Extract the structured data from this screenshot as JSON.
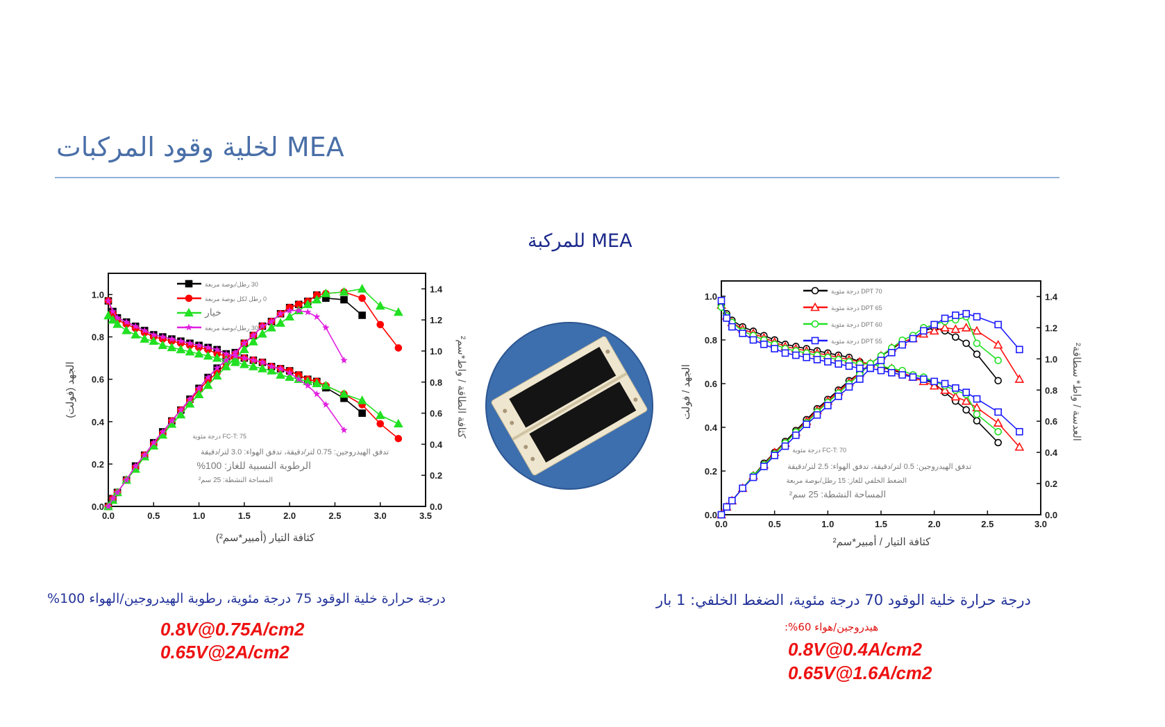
{
  "header": {
    "title": "MEA لخلية وقود المركبات",
    "subtitle": "MEA للمركبة"
  },
  "image": {
    "icon": "mea-fuel-cell-photo",
    "disc_color": "#3d6fae"
  },
  "captions": {
    "left": "درجة حرارة خلية الوقود 75 درجة مئوية، رطوبة الهيدروجين/الهواء 100%",
    "left_results": [
      "0.8V@0.75A/cm2",
      "0.65V@2A/cm2"
    ],
    "right": "درجة حرارة خلية الوقود 70 درجة مئوية، الضغط الخلفي: 1 بار",
    "right_sub": "هيدروجين/هواء 60%:",
    "right_results": [
      "0.8V@0.4A/cm2",
      "0.65V@1.6A/cm2"
    ],
    "result_color": "#ee1111"
  },
  "chart_data": [
    {
      "type": "line",
      "xlabel": "كثافة التيار (أمبير*سم²)",
      "ylabel": "الجهد (فولت)",
      "y2label": "كثافة الطاقة / واط*سم²",
      "xlim": [
        0,
        3.5
      ],
      "ylim": [
        0,
        1.1
      ],
      "y2lim": [
        0,
        1.5
      ],
      "xticks": [
        "0.0",
        "0.5",
        "1.0",
        "1.5",
        "2.0",
        "2.5",
        "3.0",
        "3.5"
      ],
      "yticks": [
        "0.0",
        "0.2",
        "0.4",
        "0.6",
        "0.8",
        "1.0"
      ],
      "y2ticks": [
        "0.0",
        "0.2",
        "0.4",
        "0.6",
        "0.8",
        "1.0",
        "1.2",
        "1.4"
      ],
      "grid": false,
      "legend_position": "top-left",
      "annotations": [
        "FC-T: 75 درجة مئوية",
        "تدفق الهيدروجين: 0.75 لتر/دقيقة، تدفق الهواء: 3.0 لتر/دقيقة",
        "الرطوبة النسبية للغاز: 100%",
        "المساحة النشطة: 25 سم²"
      ],
      "x": [
        0,
        0.05,
        0.1,
        0.2,
        0.3,
        0.4,
        0.5,
        0.6,
        0.7,
        0.8,
        0.9,
        1.0,
        1.1,
        1.2,
        1.3,
        1.4,
        1.5,
        1.6,
        1.7,
        1.8,
        1.9,
        2.0,
        2.1,
        2.2,
        2.3,
        2.4,
        2.6,
        2.8,
        3.0,
        3.2
      ],
      "series": [
        {
          "name": "30 رطل/بوصة مربعة",
          "color": "#000000",
          "marker": "square-filled",
          "voltage": [
            0.97,
            0.92,
            0.89,
            0.87,
            0.85,
            0.83,
            0.81,
            0.8,
            0.79,
            0.78,
            0.77,
            0.76,
            0.75,
            0.74,
            0.72,
            0.71,
            0.7,
            0.69,
            0.68,
            0.66,
            0.65,
            0.64,
            0.62,
            0.6,
            0.59,
            0.56,
            0.51,
            0.44
          ],
          "power": [
            0,
            0.05,
            0.09,
            0.17,
            0.26,
            0.33,
            0.41,
            0.48,
            0.55,
            0.62,
            0.69,
            0.76,
            0.83,
            0.89,
            0.94,
            0.99,
            1.05,
            1.1,
            1.16,
            1.19,
            1.24,
            1.28,
            1.3,
            1.32,
            1.36,
            1.34,
            1.33,
            1.23
          ]
        },
        {
          "name": "0 رطل لكل بوصة مربعة",
          "color": "#ff0000",
          "marker": "circle-filled",
          "voltage": [
            0.97,
            0.91,
            0.88,
            0.86,
            0.84,
            0.82,
            0.8,
            0.79,
            0.78,
            0.77,
            0.76,
            0.75,
            0.74,
            0.72,
            0.71,
            0.7,
            0.7,
            0.69,
            0.68,
            0.66,
            0.65,
            0.64,
            0.62,
            0.6,
            0.59,
            0.57,
            0.53,
            0.48,
            0.39,
            0.32
          ],
          "power": [
            0,
            0.05,
            0.09,
            0.17,
            0.25,
            0.33,
            0.4,
            0.47,
            0.55,
            0.62,
            0.68,
            0.75,
            0.81,
            0.86,
            0.92,
            0.98,
            1.05,
            1.1,
            1.16,
            1.19,
            1.24,
            1.28,
            1.3,
            1.32,
            1.36,
            1.37,
            1.38,
            1.34,
            1.17,
            1.02
          ]
        },
        {
          "name": "خيار",
          "color": "#22e022",
          "marker": "triangle-filled",
          "voltage": [
            0.9,
            0.88,
            0.86,
            0.83,
            0.81,
            0.79,
            0.78,
            0.76,
            0.75,
            0.74,
            0.73,
            0.72,
            0.71,
            0.7,
            0.69,
            0.68,
            0.67,
            0.66,
            0.65,
            0.64,
            0.62,
            0.61,
            0.6,
            0.59,
            0.58,
            0.57,
            0.53,
            0.5,
            0.43,
            0.39
          ],
          "power": [
            0,
            0.04,
            0.09,
            0.17,
            0.24,
            0.32,
            0.39,
            0.46,
            0.53,
            0.59,
            0.66,
            0.72,
            0.78,
            0.84,
            0.9,
            0.95,
            1.01,
            1.06,
            1.11,
            1.15,
            1.18,
            1.22,
            1.26,
            1.3,
            1.33,
            1.37,
            1.38,
            1.4,
            1.29,
            1.25
          ]
        },
        {
          "name": "-*-30 رطل/بوصة مربعة",
          "color": "#e020e0",
          "marker": "star",
          "voltage": [
            0.97,
            0.92,
            0.89,
            0.87,
            0.85,
            0.83,
            0.81,
            0.8,
            0.79,
            0.78,
            0.77,
            0.76,
            0.75,
            0.74,
            0.72,
            0.71,
            0.7,
            0.69,
            0.68,
            0.66,
            0.65,
            0.63,
            0.6,
            0.57,
            0.53,
            0.48,
            0.36
          ],
          "power": [
            0,
            0.05,
            0.09,
            0.17,
            0.26,
            0.33,
            0.41,
            0.48,
            0.55,
            0.62,
            0.69,
            0.76,
            0.83,
            0.89,
            0.94,
            0.99,
            1.05,
            1.1,
            1.16,
            1.19,
            1.24,
            1.26,
            1.26,
            1.25,
            1.22,
            1.15,
            0.94
          ]
        }
      ]
    },
    {
      "type": "line",
      "xlabel": "كثافة التيار / أمبير*سم²",
      "ylabel": "الجهد / فولت",
      "y2label": "العدسة / واط* سطاقة²",
      "xlim": [
        0,
        3.0
      ],
      "ylim": [
        0,
        1.07
      ],
      "y2lim": [
        0,
        1.5
      ],
      "xticks": [
        "0.0",
        "0.5",
        "1.0",
        "1.5",
        "2.0",
        "2.5",
        "3.0"
      ],
      "yticks": [
        "0.0",
        "0.2",
        "0.4",
        "0.6",
        "0.8",
        "1.0"
      ],
      "y2ticks": [
        "0.0",
        "0.2",
        "0.4",
        "0.6",
        "0.8",
        "1.0",
        "1.2",
        "1.4"
      ],
      "grid": false,
      "legend_position": "top-left",
      "annotations": [
        "FC-T: 70 درجة مئوية",
        "تدفق الهيدروجين: 0.5 لتر/دقيقة، تدفق الهواء: 2.5 لتر/دقيقة",
        "الضغط الخلفي للغاز: 15 رطل/بوصة مربعة",
        "المساحة النشطة: 25 سم²"
      ],
      "x": [
        0,
        0.05,
        0.1,
        0.2,
        0.3,
        0.4,
        0.5,
        0.6,
        0.7,
        0.8,
        0.9,
        1.0,
        1.1,
        1.2,
        1.3,
        1.4,
        1.5,
        1.6,
        1.7,
        1.8,
        1.9,
        2.0,
        2.1,
        2.2,
        2.3,
        2.4,
        2.6,
        2.8
      ],
      "series": [
        {
          "name": "DPT 70 درجة مئوية",
          "color": "#000000",
          "marker": "circle-open",
          "voltage": [
            0.96,
            0.92,
            0.89,
            0.86,
            0.84,
            0.82,
            0.8,
            0.78,
            0.77,
            0.76,
            0.75,
            0.74,
            0.73,
            0.72,
            0.7,
            0.69,
            0.68,
            0.66,
            0.65,
            0.63,
            0.62,
            0.6,
            0.56,
            0.52,
            0.48,
            0.43,
            0.33
          ],
          "power": [
            0,
            0.05,
            0.09,
            0.17,
            0.25,
            0.33,
            0.4,
            0.47,
            0.54,
            0.61,
            0.68,
            0.74,
            0.8,
            0.86,
            0.91,
            0.97,
            1.02,
            1.06,
            1.11,
            1.13,
            1.18,
            1.2,
            1.18,
            1.14,
            1.1,
            1.03,
            0.86
          ]
        },
        {
          "name": "DPT 65 درجة مئوية",
          "color": "#ff1010",
          "marker": "triangle-open",
          "voltage": [
            0.96,
            0.91,
            0.88,
            0.85,
            0.83,
            0.81,
            0.79,
            0.77,
            0.76,
            0.75,
            0.74,
            0.73,
            0.72,
            0.71,
            0.7,
            0.69,
            0.68,
            0.67,
            0.65,
            0.63,
            0.61,
            0.59,
            0.57,
            0.54,
            0.52,
            0.49,
            0.42,
            0.31
          ],
          "power": [
            0,
            0.05,
            0.09,
            0.17,
            0.25,
            0.32,
            0.4,
            0.46,
            0.53,
            0.6,
            0.67,
            0.73,
            0.79,
            0.85,
            0.91,
            0.97,
            1.02,
            1.07,
            1.11,
            1.13,
            1.16,
            1.18,
            1.2,
            1.19,
            1.2,
            1.18,
            1.09,
            0.87
          ]
        },
        {
          "name": "DPT 60 درجة مئوية",
          "color": "#22e022",
          "marker": "circle-open",
          "voltage": [
            0.95,
            0.91,
            0.88,
            0.84,
            0.82,
            0.8,
            0.78,
            0.76,
            0.75,
            0.74,
            0.73,
            0.72,
            0.71,
            0.7,
            0.69,
            0.69,
            0.68,
            0.67,
            0.66,
            0.64,
            0.63,
            0.61,
            0.59,
            0.57,
            0.55,
            0.46,
            0.38
          ],
          "power": [
            0,
            0.05,
            0.09,
            0.17,
            0.25,
            0.32,
            0.39,
            0.46,
            0.53,
            0.59,
            0.66,
            0.72,
            0.78,
            0.84,
            0.9,
            0.97,
            1.02,
            1.07,
            1.12,
            1.15,
            1.2,
            1.22,
            1.24,
            1.25,
            1.27,
            1.1,
            0.99
          ]
        },
        {
          "name": "DPT 55 درجة مئوية",
          "color": "#1a1aff",
          "marker": "square-open",
          "voltage": [
            0.98,
            0.9,
            0.86,
            0.83,
            0.8,
            0.78,
            0.76,
            0.74,
            0.73,
            0.72,
            0.71,
            0.7,
            0.69,
            0.68,
            0.67,
            0.67,
            0.66,
            0.65,
            0.64,
            0.63,
            0.62,
            0.61,
            0.6,
            0.58,
            0.56,
            0.53,
            0.47,
            0.38
          ],
          "power": [
            0,
            0.05,
            0.09,
            0.17,
            0.24,
            0.31,
            0.38,
            0.44,
            0.51,
            0.58,
            0.64,
            0.7,
            0.76,
            0.82,
            0.87,
            0.94,
            0.99,
            1.04,
            1.09,
            1.13,
            1.18,
            1.22,
            1.26,
            1.28,
            1.29,
            1.27,
            1.22,
            1.06
          ]
        }
      ]
    }
  ]
}
